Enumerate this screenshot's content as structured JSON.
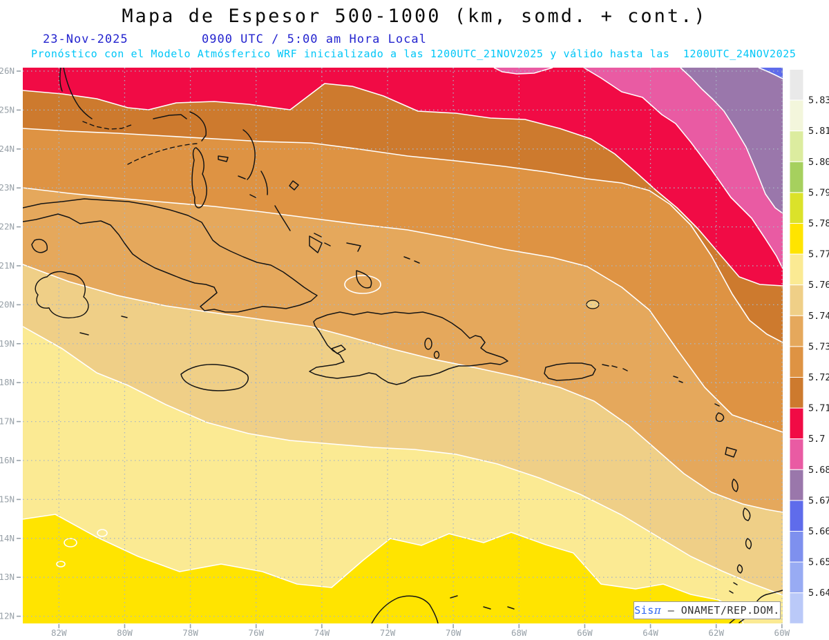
{
  "header": {
    "title": "Mapa de Espesor 500-1000 (km, somd. + cont.)",
    "date": "23-Nov-2025",
    "time": "0900 UTC / 5:00 am Hora Local",
    "forecast": "Pronóstico con el Modelo Atmósferico WRF inicializado a las 1200UTC_21NOV2025 y válido hasta las  1200UTC_24NOV2025"
  },
  "colors": {
    "title": "#0c0c0c",
    "datetime": "#2424cf",
    "forecast": "#00c6f7",
    "axis_label": "#98a1a8",
    "grid": "#a9b6c4",
    "attrib_brand": "#2a63f2",
    "attrib_text": "#333333"
  },
  "map": {
    "lat_labels": [
      "26N",
      "25N",
      "24N",
      "23N",
      "22N",
      "21N",
      "20N",
      "19N",
      "18N",
      "17N",
      "16N",
      "15N",
      "14N",
      "13N",
      "12N"
    ],
    "lon_labels": [
      "82W",
      "80W",
      "78W",
      "76W",
      "74W",
      "72W",
      "70W",
      "68W",
      "66W",
      "64W",
      "62W",
      "60W"
    ]
  },
  "colorbar": {
    "tick_labels": [
      "5.831",
      "5.819",
      "5.807",
      "5.795",
      "5.783",
      "5.772",
      "5.76",
      "5.748",
      "5.736",
      "5.724",
      "5.712",
      "5.7",
      "5.688",
      "5.676",
      "5.664",
      "5.652",
      "5.64"
    ],
    "cell_colors_top_to_bottom": [
      "#e9e9e9",
      "#f3f6dc",
      "#dcec9f",
      "#a6d05e",
      "#dbe22a",
      "#ffe400",
      "#fbea93",
      "#efcf87",
      "#e5a85c",
      "#de9343",
      "#cd7a2e",
      "#f10b45",
      "#e95ba3",
      "#9a77ab",
      "#5f6ceb",
      "#7e90ee",
      "#98abf3",
      "#bac9f8"
    ]
  },
  "bands_on_map": [
    {
      "range": "5.772-5.783",
      "color": "#ffe400"
    },
    {
      "range": "5.76-5.772",
      "color": "#fbea93"
    },
    {
      "range": "5.748-5.76",
      "color": "#efcf87"
    },
    {
      "range": "5.736-5.748",
      "color": "#e5a85c"
    },
    {
      "range": "5.724-5.736",
      "color": "#de9343"
    },
    {
      "range": "5.712-5.724",
      "color": "#cd7a2e"
    },
    {
      "range": "5.7-5.712",
      "color": "#f10b45"
    },
    {
      "range": "5.688-5.7",
      "color": "#e95ba3"
    },
    {
      "range": "5.676-5.688",
      "color": "#9a77ab"
    },
    {
      "range": "5.664-5.676",
      "color": "#5f6ceb"
    }
  ],
  "attribution": {
    "brand": "Sis",
    "pi": "π",
    "rest": " – ONAMET/REP.DOM."
  }
}
